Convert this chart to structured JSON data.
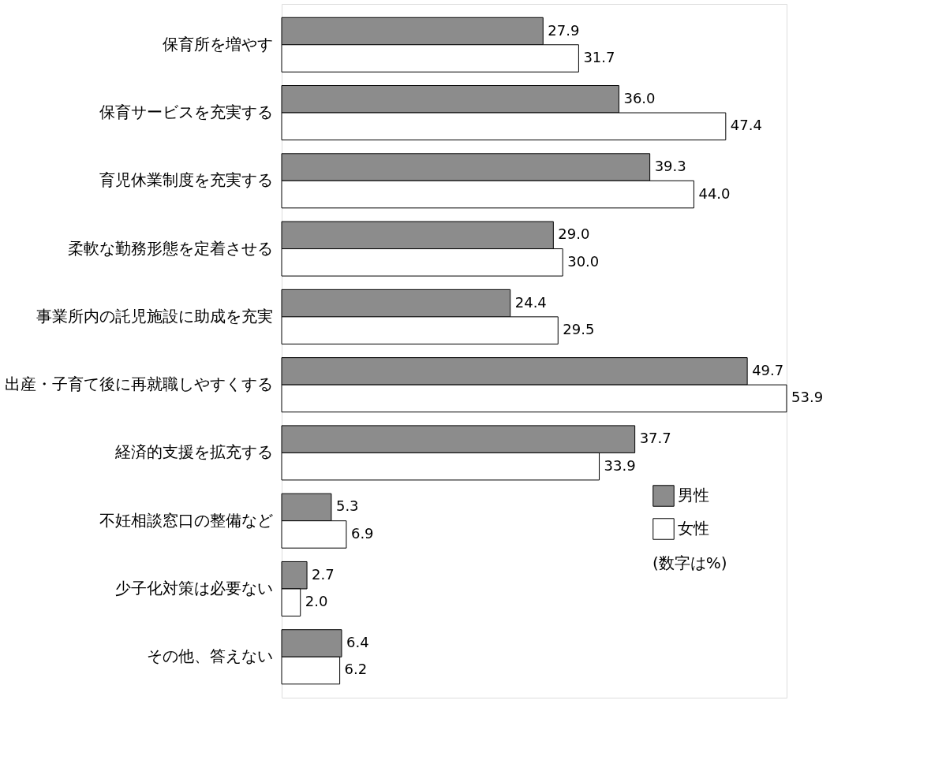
{
  "chart_data": {
    "type": "bar",
    "orientation": "horizontal",
    "categories": [
      "保育所を増やす",
      "保育サービスを充実する",
      "育児休業制度を充実する",
      "柔軟な勤務形態を定着させる",
      "事業所内の託児施設に助成を充実",
      "出産・子育て後に再就職しやすくする",
      "経済的支援を拡充する",
      "不妊相談窓口の整備など",
      "少子化対策は必要ない",
      "その他、答えない"
    ],
    "series": [
      {
        "name": "男性",
        "color": "#8c8c8c",
        "values": [
          27.9,
          36.0,
          39.3,
          29.0,
          24.4,
          49.7,
          37.7,
          5.3,
          2.7,
          6.4
        ],
        "value_labels": [
          "27.9",
          "36.0",
          "39.3",
          "29.0",
          "24.4",
          "49.7",
          "37.7",
          "5.3",
          "2.7",
          "6.4"
        ]
      },
      {
        "name": "女性",
        "color": "#ffffff",
        "values": [
          31.7,
          47.4,
          44.0,
          30.0,
          29.5,
          53.9,
          33.9,
          6.9,
          2.0,
          6.2
        ],
        "value_labels": [
          "31.7",
          "47.4",
          "44.0",
          "30.0",
          "29.5",
          "53.9",
          "33.9",
          "6.9",
          "2.0",
          "6.2"
        ]
      }
    ],
    "legend": "bottom right",
    "grid": false,
    "annotations": [
      "(数字は%)"
    ]
  }
}
